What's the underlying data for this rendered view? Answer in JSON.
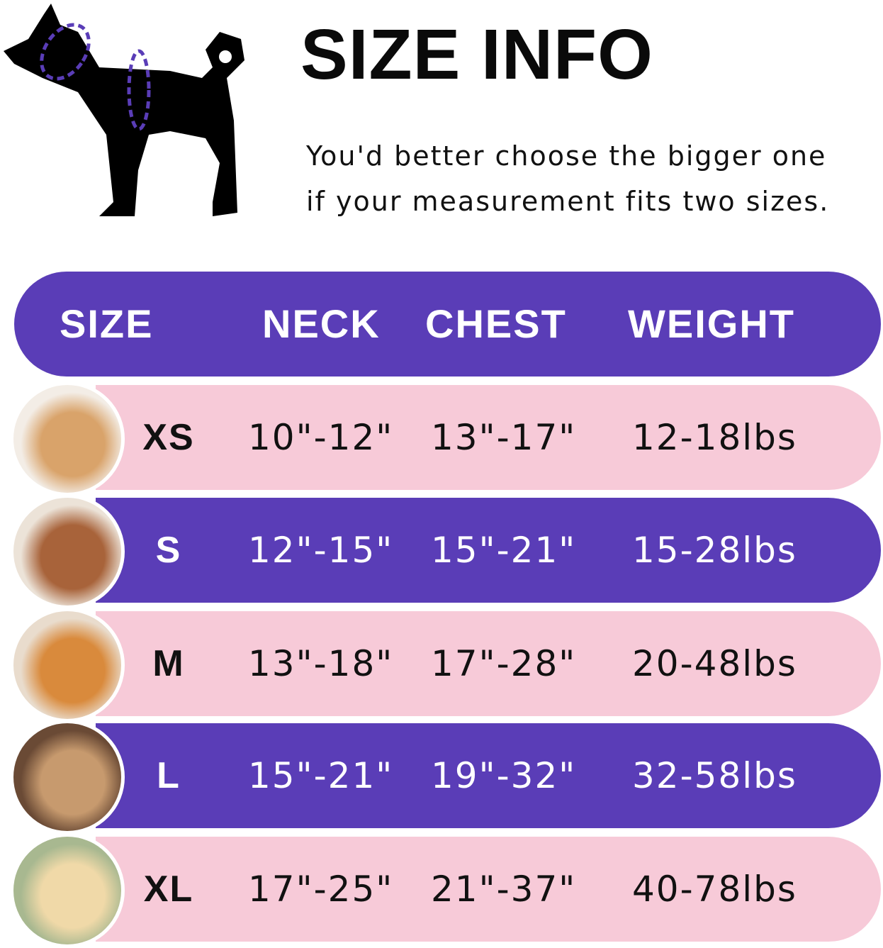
{
  "title": "SIZE INFO",
  "note": {
    "line1": "You'd better choose the bigger one",
    "line2": "if your measurement fits two sizes."
  },
  "colors": {
    "purple": "#5a3db7",
    "pink": "#f7cad8",
    "text": "#111111"
  },
  "header": {
    "size": "SIZE",
    "neck": "NECK",
    "chest": "CHEST",
    "weight": "WEIGHT"
  },
  "rows": [
    {
      "size": "XS",
      "neck": "10\"-12\"",
      "chest": "13\"-17\"",
      "weight": "12-18lbs",
      "style": "pink",
      "photo": "pomeranian"
    },
    {
      "size": "S",
      "neck": "12\"-15\"",
      "chest": "15\"-21\"",
      "weight": "15-28lbs",
      "style": "purple",
      "photo": "poodle"
    },
    {
      "size": "M",
      "neck": "13\"-18\"",
      "chest": "17\"-28\"",
      "weight": "20-48lbs",
      "style": "pink",
      "photo": "shiba-inu"
    },
    {
      "size": "L",
      "neck": "15\"-21\"",
      "chest": "19\"-32\"",
      "weight": "32-58lbs",
      "style": "purple",
      "photo": "french-bulldog"
    },
    {
      "size": "XL",
      "neck": "17\"-25\"",
      "chest": "21\"-37\"",
      "weight": "40-78lbs",
      "style": "pink",
      "photo": "labrador"
    }
  ]
}
